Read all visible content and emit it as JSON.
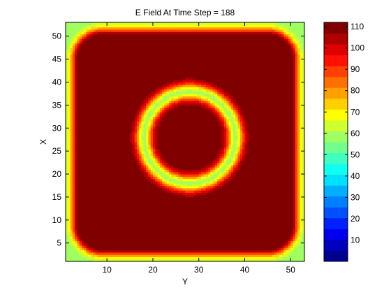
{
  "chart_data": {
    "type": "heatmap",
    "title": "E Field At Time Step = 188",
    "xlabel": "Y",
    "ylabel": "X",
    "xlim": [
      1,
      53
    ],
    "ylim": [
      1,
      53
    ],
    "x_ticks": [
      10,
      20,
      30,
      40,
      50
    ],
    "y_ticks": [
      5,
      10,
      15,
      20,
      25,
      30,
      35,
      40,
      45,
      50
    ],
    "colorbar": {
      "range": [
        0,
        112
      ],
      "ticks": [
        10,
        20,
        30,
        40,
        50,
        60,
        70,
        80,
        90,
        100,
        110
      ],
      "colormap": [
        "#00008f",
        "#0000bf",
        "#0000ef",
        "#0020ff",
        "#0050ff",
        "#0080ff",
        "#00b0ff",
        "#00e0ff",
        "#10ffef",
        "#40ffbf",
        "#70ff8f",
        "#a0ff60",
        "#d0ff30",
        "#ffff00",
        "#ffcf00",
        "#ff9f00",
        "#ff7000",
        "#ff4000",
        "#ff1000",
        "#df0000",
        "#af0000",
        "#800000"
      ]
    },
    "field_structure": {
      "background_level": 58,
      "outer_square_band": {
        "center": [
          27,
          27
        ],
        "half_width": 23,
        "corner_radius": 5,
        "peak": 112,
        "inner_plateau": 112
      },
      "inner_ring": {
        "center": [
          28,
          28
        ],
        "radius": 10,
        "valley": 60,
        "inside_plateau": 112
      }
    }
  }
}
